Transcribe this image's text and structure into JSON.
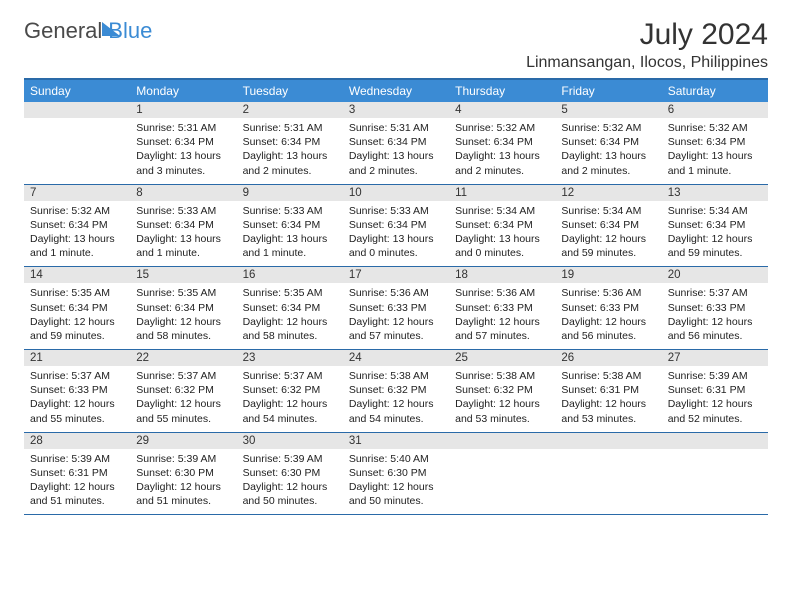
{
  "logo": {
    "part1": "General",
    "part2": "Blue"
  },
  "title": "July 2024",
  "location": "Linmansangan, Ilocos, Philippines",
  "colors": {
    "header_bg": "#3b8bd4",
    "header_text": "#ffffff",
    "border": "#2a6aa8",
    "day_bar_bg": "#e6e6e6",
    "text": "#222222",
    "logo_gray": "#4a4a4a",
    "logo_blue": "#3b8bd4"
  },
  "weekdays": [
    "Sunday",
    "Monday",
    "Tuesday",
    "Wednesday",
    "Thursday",
    "Friday",
    "Saturday"
  ],
  "weeks": [
    [
      null,
      {
        "num": "1",
        "sunrise": "Sunrise: 5:31 AM",
        "sunset": "Sunset: 6:34 PM",
        "daylight": "Daylight: 13 hours and 3 minutes."
      },
      {
        "num": "2",
        "sunrise": "Sunrise: 5:31 AM",
        "sunset": "Sunset: 6:34 PM",
        "daylight": "Daylight: 13 hours and 2 minutes."
      },
      {
        "num": "3",
        "sunrise": "Sunrise: 5:31 AM",
        "sunset": "Sunset: 6:34 PM",
        "daylight": "Daylight: 13 hours and 2 minutes."
      },
      {
        "num": "4",
        "sunrise": "Sunrise: 5:32 AM",
        "sunset": "Sunset: 6:34 PM",
        "daylight": "Daylight: 13 hours and 2 minutes."
      },
      {
        "num": "5",
        "sunrise": "Sunrise: 5:32 AM",
        "sunset": "Sunset: 6:34 PM",
        "daylight": "Daylight: 13 hours and 2 minutes."
      },
      {
        "num": "6",
        "sunrise": "Sunrise: 5:32 AM",
        "sunset": "Sunset: 6:34 PM",
        "daylight": "Daylight: 13 hours and 1 minute."
      }
    ],
    [
      {
        "num": "7",
        "sunrise": "Sunrise: 5:32 AM",
        "sunset": "Sunset: 6:34 PM",
        "daylight": "Daylight: 13 hours and 1 minute."
      },
      {
        "num": "8",
        "sunrise": "Sunrise: 5:33 AM",
        "sunset": "Sunset: 6:34 PM",
        "daylight": "Daylight: 13 hours and 1 minute."
      },
      {
        "num": "9",
        "sunrise": "Sunrise: 5:33 AM",
        "sunset": "Sunset: 6:34 PM",
        "daylight": "Daylight: 13 hours and 1 minute."
      },
      {
        "num": "10",
        "sunrise": "Sunrise: 5:33 AM",
        "sunset": "Sunset: 6:34 PM",
        "daylight": "Daylight: 13 hours and 0 minutes."
      },
      {
        "num": "11",
        "sunrise": "Sunrise: 5:34 AM",
        "sunset": "Sunset: 6:34 PM",
        "daylight": "Daylight: 13 hours and 0 minutes."
      },
      {
        "num": "12",
        "sunrise": "Sunrise: 5:34 AM",
        "sunset": "Sunset: 6:34 PM",
        "daylight": "Daylight: 12 hours and 59 minutes."
      },
      {
        "num": "13",
        "sunrise": "Sunrise: 5:34 AM",
        "sunset": "Sunset: 6:34 PM",
        "daylight": "Daylight: 12 hours and 59 minutes."
      }
    ],
    [
      {
        "num": "14",
        "sunrise": "Sunrise: 5:35 AM",
        "sunset": "Sunset: 6:34 PM",
        "daylight": "Daylight: 12 hours and 59 minutes."
      },
      {
        "num": "15",
        "sunrise": "Sunrise: 5:35 AM",
        "sunset": "Sunset: 6:34 PM",
        "daylight": "Daylight: 12 hours and 58 minutes."
      },
      {
        "num": "16",
        "sunrise": "Sunrise: 5:35 AM",
        "sunset": "Sunset: 6:34 PM",
        "daylight": "Daylight: 12 hours and 58 minutes."
      },
      {
        "num": "17",
        "sunrise": "Sunrise: 5:36 AM",
        "sunset": "Sunset: 6:33 PM",
        "daylight": "Daylight: 12 hours and 57 minutes."
      },
      {
        "num": "18",
        "sunrise": "Sunrise: 5:36 AM",
        "sunset": "Sunset: 6:33 PM",
        "daylight": "Daylight: 12 hours and 57 minutes."
      },
      {
        "num": "19",
        "sunrise": "Sunrise: 5:36 AM",
        "sunset": "Sunset: 6:33 PM",
        "daylight": "Daylight: 12 hours and 56 minutes."
      },
      {
        "num": "20",
        "sunrise": "Sunrise: 5:37 AM",
        "sunset": "Sunset: 6:33 PM",
        "daylight": "Daylight: 12 hours and 56 minutes."
      }
    ],
    [
      {
        "num": "21",
        "sunrise": "Sunrise: 5:37 AM",
        "sunset": "Sunset: 6:33 PM",
        "daylight": "Daylight: 12 hours and 55 minutes."
      },
      {
        "num": "22",
        "sunrise": "Sunrise: 5:37 AM",
        "sunset": "Sunset: 6:32 PM",
        "daylight": "Daylight: 12 hours and 55 minutes."
      },
      {
        "num": "23",
        "sunrise": "Sunrise: 5:37 AM",
        "sunset": "Sunset: 6:32 PM",
        "daylight": "Daylight: 12 hours and 54 minutes."
      },
      {
        "num": "24",
        "sunrise": "Sunrise: 5:38 AM",
        "sunset": "Sunset: 6:32 PM",
        "daylight": "Daylight: 12 hours and 54 minutes."
      },
      {
        "num": "25",
        "sunrise": "Sunrise: 5:38 AM",
        "sunset": "Sunset: 6:32 PM",
        "daylight": "Daylight: 12 hours and 53 minutes."
      },
      {
        "num": "26",
        "sunrise": "Sunrise: 5:38 AM",
        "sunset": "Sunset: 6:31 PM",
        "daylight": "Daylight: 12 hours and 53 minutes."
      },
      {
        "num": "27",
        "sunrise": "Sunrise: 5:39 AM",
        "sunset": "Sunset: 6:31 PM",
        "daylight": "Daylight: 12 hours and 52 minutes."
      }
    ],
    [
      {
        "num": "28",
        "sunrise": "Sunrise: 5:39 AM",
        "sunset": "Sunset: 6:31 PM",
        "daylight": "Daylight: 12 hours and 51 minutes."
      },
      {
        "num": "29",
        "sunrise": "Sunrise: 5:39 AM",
        "sunset": "Sunset: 6:30 PM",
        "daylight": "Daylight: 12 hours and 51 minutes."
      },
      {
        "num": "30",
        "sunrise": "Sunrise: 5:39 AM",
        "sunset": "Sunset: 6:30 PM",
        "daylight": "Daylight: 12 hours and 50 minutes."
      },
      {
        "num": "31",
        "sunrise": "Sunrise: 5:40 AM",
        "sunset": "Sunset: 6:30 PM",
        "daylight": "Daylight: 12 hours and 50 minutes."
      },
      null,
      null,
      null
    ]
  ]
}
